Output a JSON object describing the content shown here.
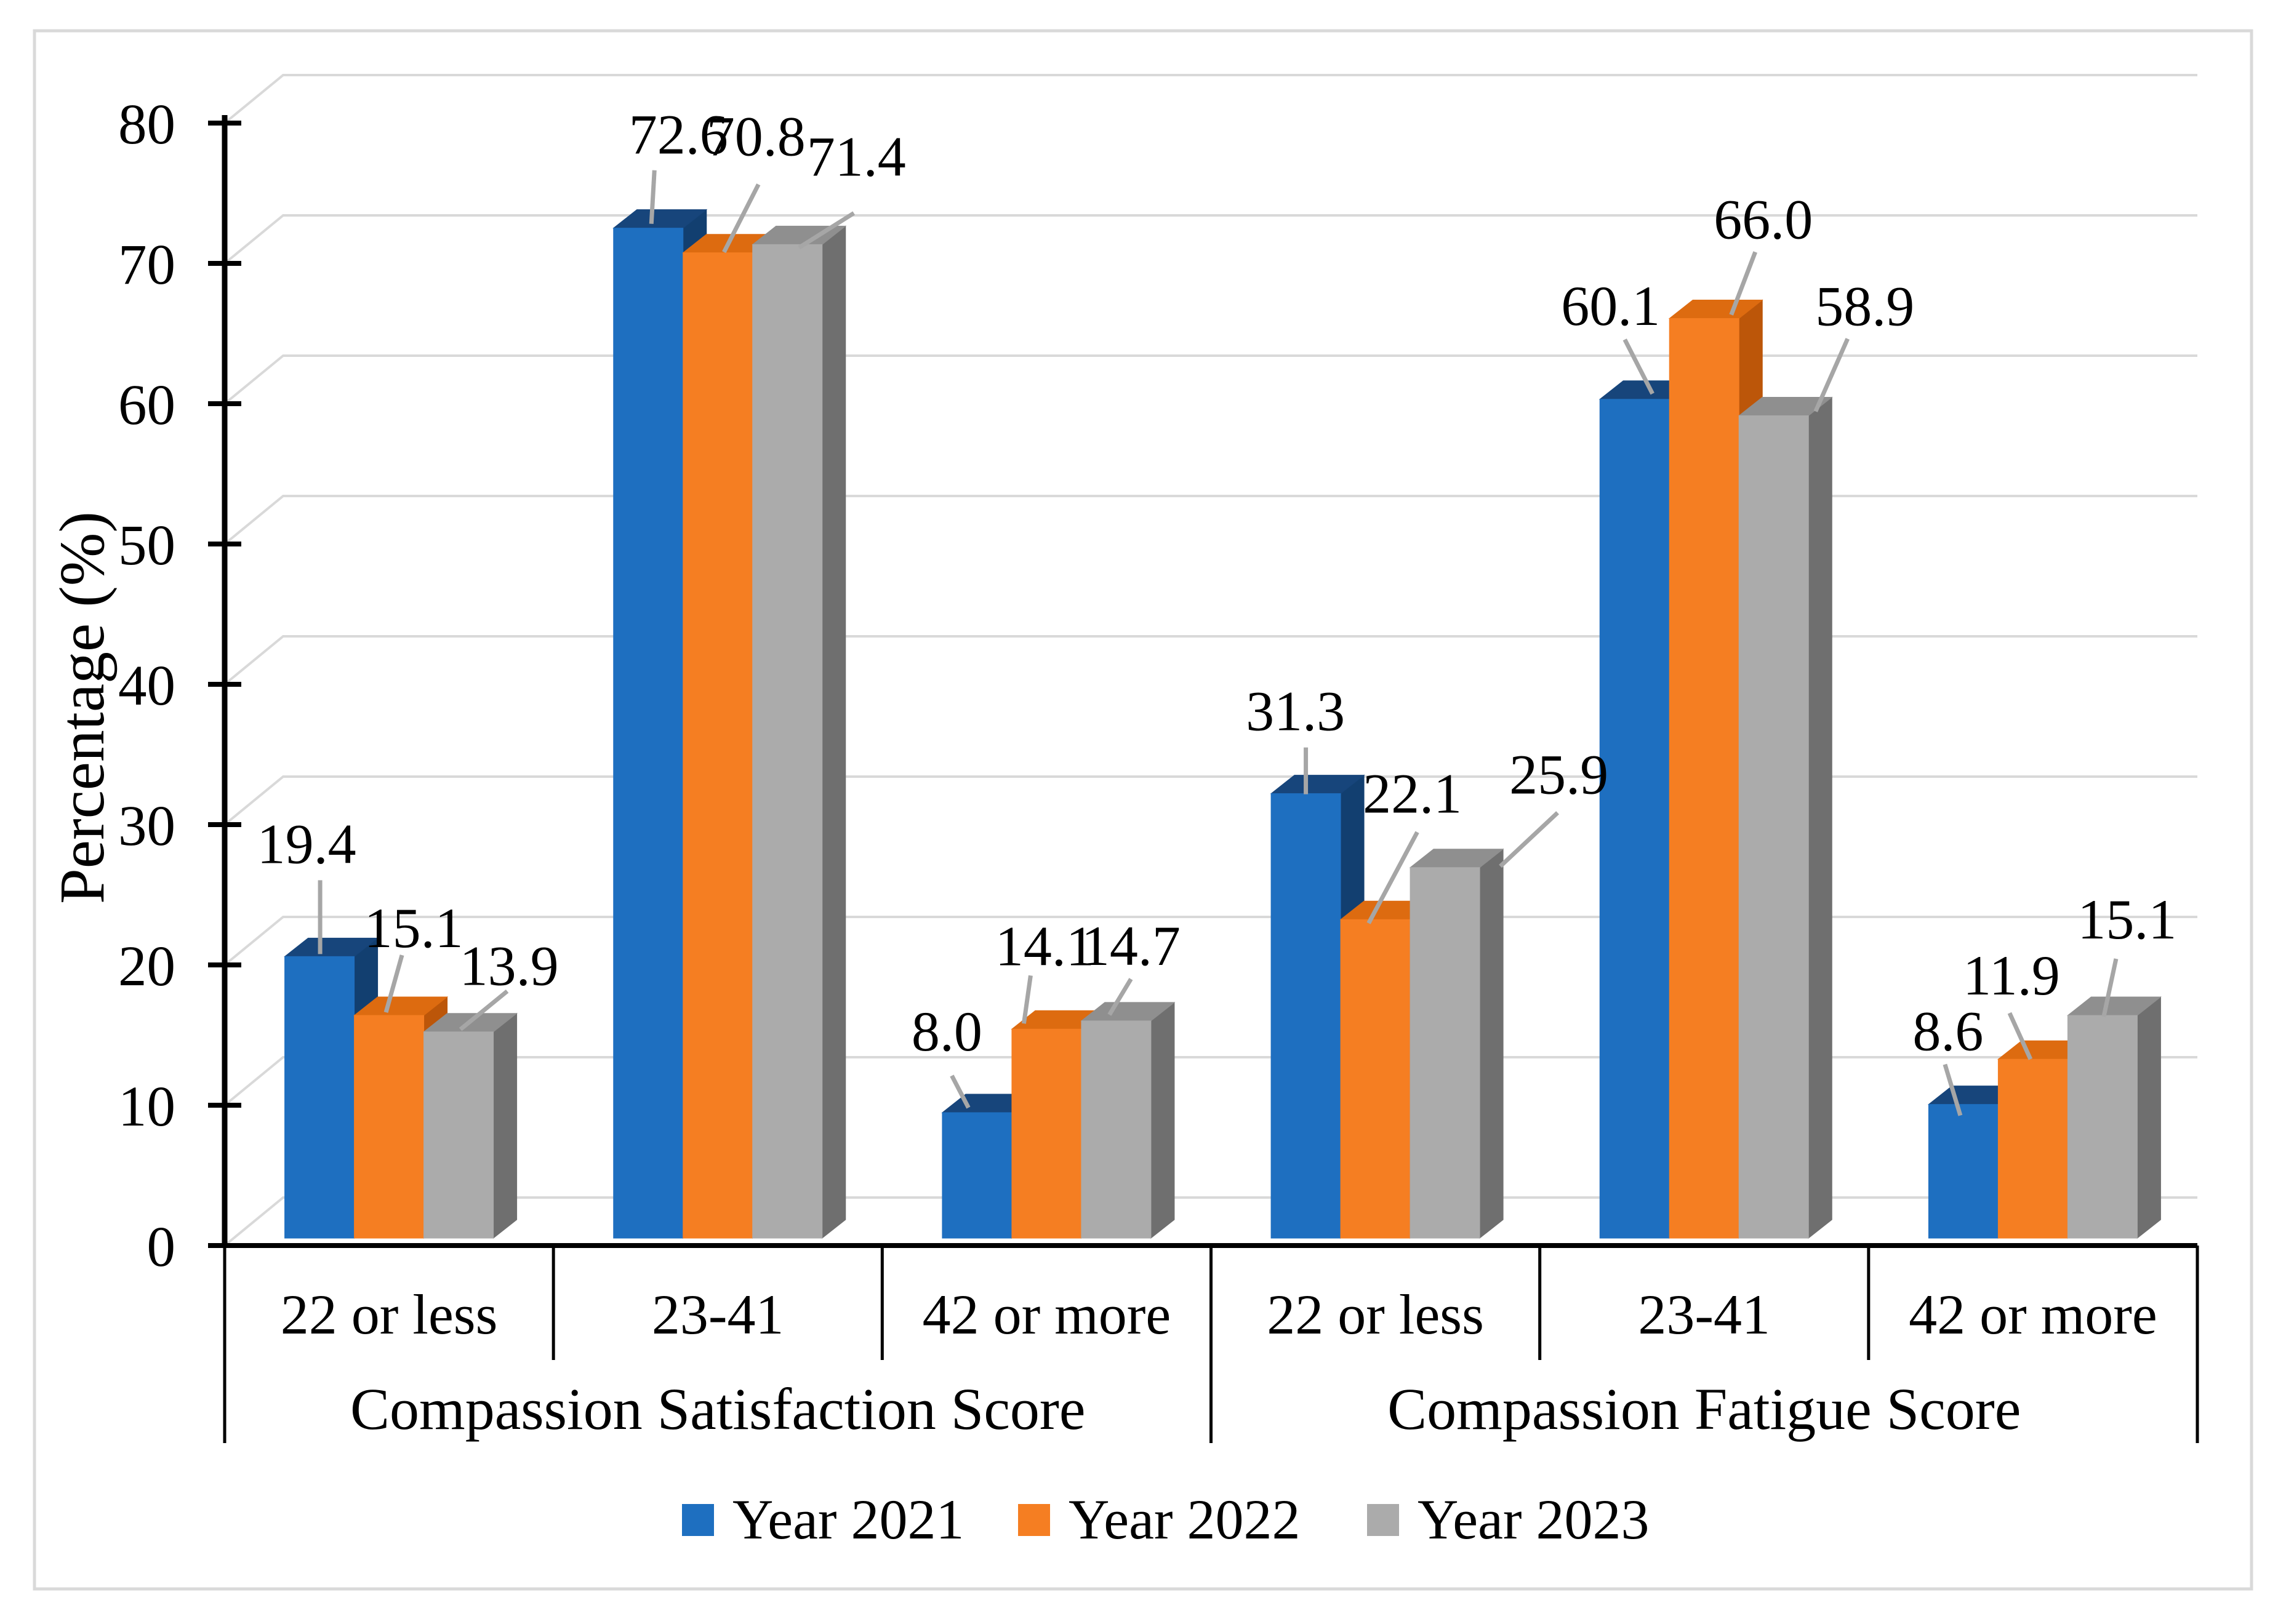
{
  "chart_data": {
    "type": "bar",
    "style": "3d-clustered-column",
    "title": "",
    "ylabel": "Percentage (%)",
    "xlabel": "",
    "ylim": [
      0,
      80
    ],
    "ytick_step": 10,
    "yticks": [
      0,
      10,
      20,
      30,
      40,
      50,
      60,
      70,
      80
    ],
    "grid": true,
    "legend_position": "bottom",
    "groups": [
      {
        "label": "Compassion Satisfaction Score",
        "categories": [
          "22 or less",
          "23-41",
          "42 or more"
        ]
      },
      {
        "label": "Compassion Fatigue Score",
        "categories": [
          "22 or less",
          "23-41",
          "42 or more"
        ]
      }
    ],
    "categories": [
      "22 or less",
      "23-41",
      "42 or more",
      "22 or less",
      "23-41",
      "42 or more"
    ],
    "series": [
      {
        "name": "Year 2021",
        "color": "#1E6FC0",
        "color_top": "#17457B",
        "color_side": "#123F70",
        "values": [
          19.4,
          72.6,
          8.0,
          31.3,
          60.1,
          8.6
        ]
      },
      {
        "name": "Year 2022",
        "color": "#F57E22",
        "color_top": "#DD6B10",
        "color_side": "#BC5609",
        "values": [
          15.1,
          70.8,
          14.1,
          22.1,
          66.0,
          11.9
        ]
      },
      {
        "name": "Year 2023",
        "color": "#ABABAB",
        "color_top": "#8F8F8F",
        "color_side": "#6F6F6F",
        "values": [
          13.9,
          71.4,
          14.7,
          25.9,
          58.9,
          15.1
        ]
      }
    ],
    "colors": {
      "axis": "#000000",
      "gridline": "#D9D9D9",
      "leader_line": "#A6A6A6",
      "figure_border": "#D9D9D9",
      "background": "#FFFFFF",
      "text": "#000000"
    }
  }
}
